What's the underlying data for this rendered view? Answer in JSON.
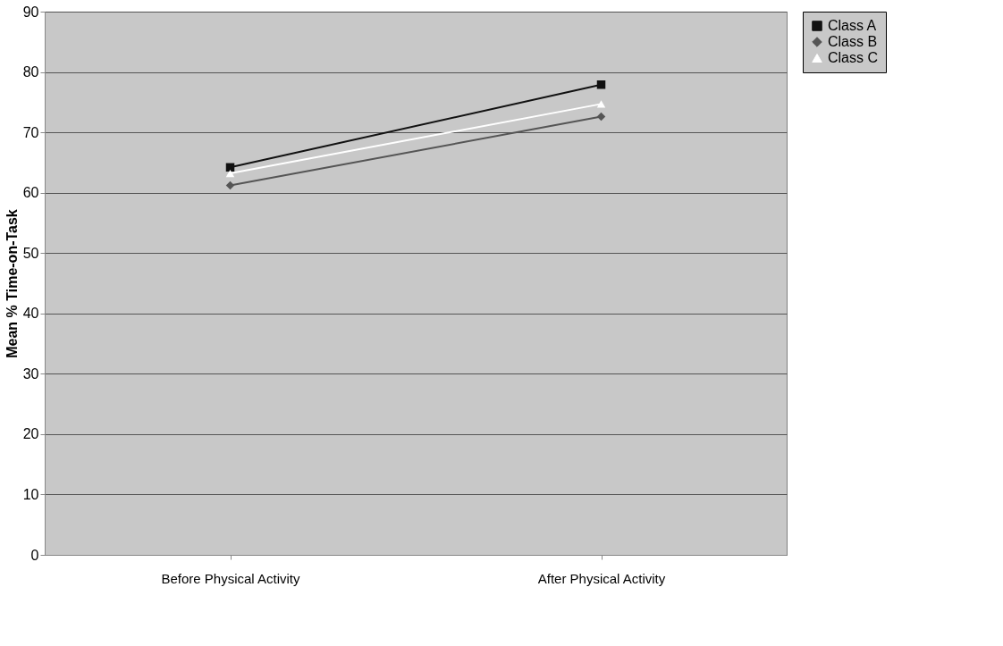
{
  "chart_data": {
    "type": "line",
    "ylabel": "Mean % Time-on-Task",
    "categories": [
      "Before Physical Activity",
      "After Physical Activity"
    ],
    "series": [
      {
        "name": "Class A",
        "color": "#111111",
        "marker": "square",
        "values": [
          64.2,
          77.9
        ]
      },
      {
        "name": "Class B",
        "color": "#555555",
        "marker": "diamond",
        "values": [
          61.2,
          72.6
        ]
      },
      {
        "name": "Class C",
        "color": "#ffffff",
        "marker": "triangle",
        "values": [
          63.2,
          74.7
        ]
      }
    ],
    "ylim": [
      0,
      90
    ],
    "yticks": [
      0,
      10,
      20,
      30,
      40,
      50,
      60,
      70,
      80,
      90
    ],
    "grid": "y",
    "legend": "right"
  }
}
